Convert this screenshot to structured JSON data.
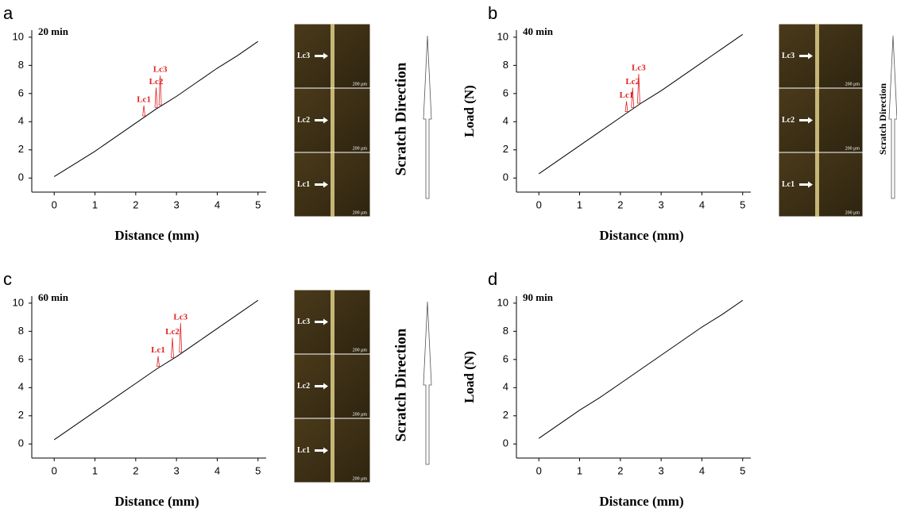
{
  "chart_data": [
    {
      "type": "line",
      "panel": "a",
      "annotation": "20 min",
      "xlabel": "Distance (mm)",
      "x": [
        0,
        0.5,
        1,
        1.5,
        2,
        2.5,
        3,
        3.5,
        4,
        4.5,
        5
      ],
      "series": [
        {
          "color": "#000000",
          "values": [
            0.1,
            1.0,
            1.9,
            2.9,
            3.9,
            4.9,
            5.8,
            6.8,
            7.8,
            8.7,
            9.7
          ]
        }
      ],
      "xlim": [
        -0.55,
        5.2
      ],
      "ylim": [
        -1,
        10.5
      ],
      "xticks": [
        0,
        1,
        2,
        3,
        4,
        5
      ],
      "yticks": [
        0,
        2,
        4,
        6,
        8,
        10
      ],
      "critical_loads": [
        {
          "label": "Lc1",
          "x": 2.2
        },
        {
          "label": "Lc2",
          "x": 2.5
        },
        {
          "label": "Lc3",
          "x": 2.6
        }
      ],
      "micrograph": {
        "labels": [
          "Lc3",
          "Lc2",
          "Lc1"
        ],
        "scale": "200 μm"
      },
      "direction": "Scratch Direction"
    },
    {
      "type": "line",
      "panel": "b",
      "annotation": "40 min",
      "xlabel": "Distance (mm)",
      "ylabel": "Load (N)",
      "x": [
        0,
        0.5,
        1,
        1.5,
        2,
        2.5,
        3,
        3.5,
        4,
        4.5,
        5
      ],
      "series": [
        {
          "color": "#000000",
          "values": [
            0.3,
            1.3,
            2.3,
            3.3,
            4.3,
            5.3,
            6.2,
            7.2,
            8.2,
            9.2,
            10.2
          ]
        }
      ],
      "xlim": [
        -0.55,
        5.2
      ],
      "ylim": [
        -1,
        10.5
      ],
      "xticks": [
        0,
        1,
        2,
        3,
        4,
        5
      ],
      "yticks": [
        0,
        2,
        4,
        6,
        8,
        10
      ],
      "critical_loads": [
        {
          "label": "Lc1",
          "x": 2.15
        },
        {
          "label": "Lc2",
          "x": 2.3
        },
        {
          "label": "Lc3",
          "x": 2.45
        }
      ],
      "micrograph": {
        "labels": [
          "Lc3",
          "Lc2",
          "Lc1"
        ],
        "scale": "200 μm"
      },
      "direction": "Scratch Direction"
    },
    {
      "type": "line",
      "panel": "c",
      "annotation": "60 min",
      "xlabel": "Distance (mm)",
      "x": [
        0,
        0.5,
        1,
        1.5,
        2,
        2.5,
        3,
        3.5,
        4,
        4.5,
        5
      ],
      "series": [
        {
          "color": "#000000",
          "values": [
            0.3,
            1.3,
            2.3,
            3.3,
            4.3,
            5.3,
            6.2,
            7.2,
            8.2,
            9.2,
            10.2
          ]
        }
      ],
      "xlim": [
        -0.55,
        5.2
      ],
      "ylim": [
        -1,
        10.5
      ],
      "xticks": [
        0,
        1,
        2,
        3,
        4,
        5
      ],
      "yticks": [
        0,
        2,
        4,
        6,
        8,
        10
      ],
      "critical_loads": [
        {
          "label": "Lc1",
          "x": 2.55
        },
        {
          "label": "Lc2",
          "x": 2.9
        },
        {
          "label": "Lc3",
          "x": 3.1
        }
      ],
      "micrograph": {
        "labels": [
          "Lc3",
          "Lc2",
          "Lc1"
        ],
        "scale": "200 μm"
      },
      "direction": "Scratch Direction"
    },
    {
      "type": "line",
      "panel": "d",
      "annotation": "90 min",
      "xlabel": "Distance (mm)",
      "ylabel": "Load (N)",
      "x": [
        0,
        0.5,
        1,
        1.5,
        2,
        2.5,
        3,
        3.5,
        4,
        4.5,
        5
      ],
      "series": [
        {
          "color": "#000000",
          "values": [
            0.4,
            1.4,
            2.4,
            3.3,
            4.3,
            5.3,
            6.3,
            7.3,
            8.3,
            9.2,
            10.2
          ]
        }
      ],
      "xlim": [
        -0.55,
        5.2
      ],
      "ylim": [
        -1,
        10.5
      ],
      "xticks": [
        0,
        1,
        2,
        3,
        4,
        5
      ],
      "yticks": [
        0,
        2,
        4,
        6,
        8,
        10
      ]
    }
  ]
}
